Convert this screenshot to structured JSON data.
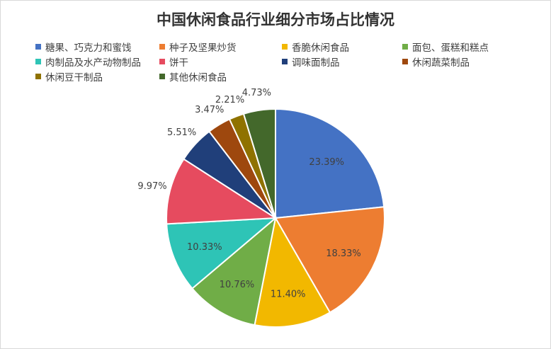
{
  "chart_data": {
    "type": "pie",
    "title": "中国休闲食品行业细分市场占比情况",
    "legend_position": "top",
    "slices": [
      {
        "name": "糖果、巧克力和蜜饯",
        "value": 23.39,
        "label": "23.39%",
        "color": "#4472c4"
      },
      {
        "name": "种子及坚果炒货",
        "value": 18.33,
        "label": "18.33%",
        "color": "#ed7d31"
      },
      {
        "name": "香脆休闲食品",
        "value": 11.4,
        "label": "11.40%",
        "color": "#f2b800"
      },
      {
        "name": "面包、蛋糕和糕点",
        "value": 10.76,
        "label": "10.76%",
        "color": "#70ad47"
      },
      {
        "name": "肉制品及水产动物制品",
        "value": 10.33,
        "label": "10.33%",
        "color": "#2ec4b6"
      },
      {
        "name": "饼干",
        "value": 9.97,
        "label": "9.97%",
        "color": "#e64b5f"
      },
      {
        "name": "调味面制品",
        "value": 5.51,
        "label": "5.51%",
        "color": "#203f7a"
      },
      {
        "name": "休闲蔬菜制品",
        "value": 3.47,
        "label": "3.47%",
        "color": "#9e480e"
      },
      {
        "name": "休闲豆干制品",
        "value": 2.21,
        "label": "2.21%",
        "color": "#8f7200"
      },
      {
        "name": "其他休闲食品",
        "value": 4.73,
        "label": "4.73%",
        "color": "#43682b"
      }
    ]
  }
}
